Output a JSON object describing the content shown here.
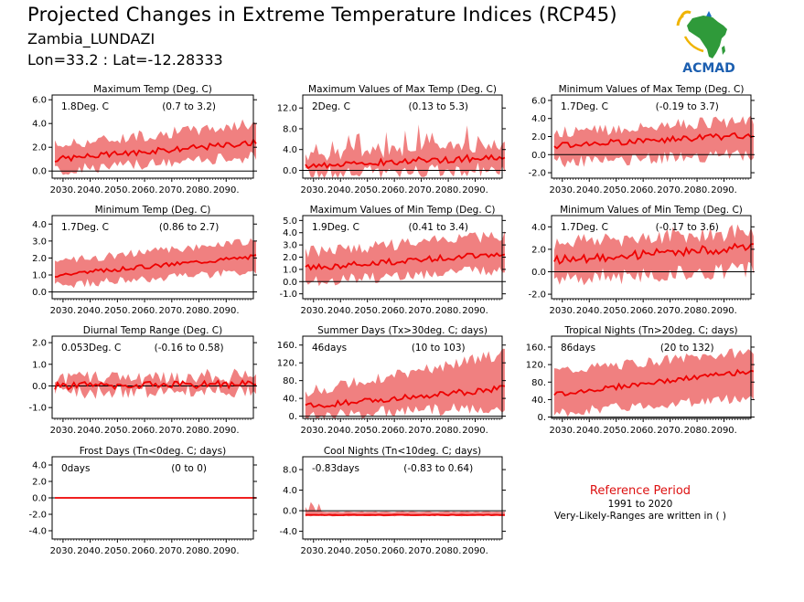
{
  "header": {
    "title": "Projected Changes in Extreme Temperature Indices (RCP45)",
    "location": "Zambia_LUNDAZI",
    "coords": "Lon=33.2 : Lat=-12.28333"
  },
  "logo": {
    "text": "ACMAD",
    "icon": "africa-map-logo",
    "colors": {
      "africa": "#2f9a3a",
      "sun": "#f0b400",
      "drop": "#1c6fc2",
      "text": "#1c5fb0"
    }
  },
  "reference": {
    "title": "Reference Period",
    "years": "1991 to 2020",
    "note": "Very-Likely-Ranges are written in ( )"
  },
  "colors": {
    "band": "#f08080",
    "line": "#ee0000",
    "zero": "#000000"
  },
  "chart_data": [
    {
      "type": "area",
      "title": "Maximum Temp (Deg. C)",
      "value_label": "1.8Deg. C",
      "range_label": "(0.7 to 3.2)",
      "ylim": [
        -0.6,
        6.4
      ],
      "yticks": [
        0,
        2,
        4,
        6
      ],
      "ytick_labels": [
        "0.0",
        "2.0",
        "4.0",
        "6.0"
      ],
      "xticks": [
        "2030.",
        "2040.",
        "2050.",
        "2060.",
        "2070.",
        "2080.",
        "2090."
      ],
      "x_range": [
        2026,
        2100
      ],
      "median_start": 1.0,
      "median_end": 2.4,
      "band_low_start": 0.0,
      "band_low_end": 1.2,
      "band_high_start": 2.2,
      "band_high_end": 4.0,
      "noise": 0.5
    },
    {
      "type": "area",
      "title": "Maximum Values of Max Temp (Deg. C)",
      "value_label": "2Deg. C",
      "range_label": "(0.13 to 5.3)",
      "ylim": [
        -1.5,
        14.5
      ],
      "yticks": [
        0,
        4,
        8,
        12
      ],
      "ytick_labels": [
        "0.0",
        "4.0",
        "8.0",
        "12.0"
      ],
      "xticks": [
        "2030.",
        "2040.",
        "2050.",
        "2060.",
        "2070.",
        "2080.",
        "2090."
      ],
      "x_range": [
        2026,
        2100
      ],
      "median_start": 0.8,
      "median_end": 2.6,
      "band_low_start": -0.5,
      "band_low_end": 0.2,
      "band_high_start": 3.0,
      "band_high_end": 5.0,
      "noise": 1.4,
      "spikes": true
    },
    {
      "type": "area",
      "title": "Minimum Values of Max Temp (Deg. C)",
      "value_label": "1.7Deg. C",
      "range_label": "(-0.19 to 3.7)",
      "ylim": [
        -2.6,
        6.6
      ],
      "yticks": [
        -2,
        0,
        2,
        4,
        6
      ],
      "ytick_labels": [
        "-2.0",
        "0.0",
        "2.0",
        "4.0",
        "6.0"
      ],
      "xticks": [
        "2030.",
        "2040.",
        "2050.",
        "2060.",
        "2070.",
        "2080.",
        "2090."
      ],
      "x_range": [
        2026,
        2100
      ],
      "median_start": 1.0,
      "median_end": 2.2,
      "band_low_start": -0.8,
      "band_low_end": 0.0,
      "band_high_start": 2.4,
      "band_high_end": 3.8,
      "noise": 0.7
    },
    {
      "type": "area",
      "title": "Minimum Temp (Deg. C)",
      "value_label": "1.7Deg. C",
      "range_label": "(0.86 to 2.7)",
      "ylim": [
        -0.4,
        4.5
      ],
      "yticks": [
        0,
        1,
        2,
        3,
        4
      ],
      "ytick_labels": [
        "0.0",
        "1.0",
        "2.0",
        "3.0",
        "4.0"
      ],
      "xticks": [
        "2030.",
        "2040.",
        "2050.",
        "2060.",
        "2070.",
        "2080.",
        "2090."
      ],
      "x_range": [
        2026,
        2100
      ],
      "median_start": 1.0,
      "median_end": 2.1,
      "band_low_start": 0.4,
      "band_low_end": 1.2,
      "band_high_start": 1.8,
      "band_high_end": 3.0,
      "noise": 0.25
    },
    {
      "type": "area",
      "title": "Maximum Values of Min Temp (Deg. C)",
      "value_label": "1.9Deg. C",
      "range_label": "(0.41 to 3.4)",
      "ylim": [
        -1.4,
        5.4
      ],
      "yticks": [
        -1,
        0,
        1,
        2,
        3,
        4,
        5
      ],
      "ytick_labels": [
        "-1.0",
        "0.0",
        "1.0",
        "2.0",
        "3.0",
        "4.0",
        "5.0"
      ],
      "xticks": [
        "2030.",
        "2040.",
        "2050.",
        "2060.",
        "2070.",
        "2080.",
        "2090."
      ],
      "x_range": [
        2026,
        2100
      ],
      "median_start": 1.1,
      "median_end": 2.3,
      "band_low_start": 0.0,
      "band_low_end": 1.0,
      "band_high_start": 2.4,
      "band_high_end": 3.8,
      "noise": 0.5
    },
    {
      "type": "area",
      "title": "Minimum Values of Min Temp (Deg. C)",
      "value_label": "1.7Deg. C",
      "range_label": "(-0.17 to 3.6)",
      "ylim": [
        -2.4,
        5.0
      ],
      "yticks": [
        -2,
        0,
        2,
        4
      ],
      "ytick_labels": [
        "-2.0",
        "0.0",
        "2.0",
        "4.0"
      ],
      "xticks": [
        "2030.",
        "2040.",
        "2050.",
        "2060.",
        "2070.",
        "2080.",
        "2090."
      ],
      "x_range": [
        2026,
        2100
      ],
      "median_start": 1.0,
      "median_end": 2.2,
      "band_low_start": -0.6,
      "band_low_end": 0.2,
      "band_high_start": 2.6,
      "band_high_end": 3.6,
      "noise": 0.8
    },
    {
      "type": "area",
      "title": "Diurnal Temp Range (Deg. C)",
      "value_label": "0.053Deg. C",
      "range_label": "(-0.16 to 0.58)",
      "ylim": [
        -1.5,
        2.3
      ],
      "yticks": [
        -1,
        0,
        1,
        2
      ],
      "ytick_labels": [
        "-1.0",
        "0.0",
        "1.0",
        "2.0"
      ],
      "xticks": [
        "2030.",
        "2040.",
        "2050.",
        "2060.",
        "2070.",
        "2080.",
        "2090."
      ],
      "x_range": [
        2026,
        2100
      ],
      "median_start": 0.0,
      "median_end": 0.1,
      "band_low_start": -0.3,
      "band_low_end": -0.2,
      "band_high_start": 0.3,
      "band_high_end": 0.5,
      "noise": 0.35
    },
    {
      "type": "area",
      "title": "Summer Days (Tx>30deg. C; days)",
      "value_label": "46days",
      "range_label": "(10 to 103)",
      "ylim": [
        -5,
        180
      ],
      "yticks": [
        0,
        40,
        80,
        120,
        160
      ],
      "ytick_labels": [
        "0.",
        "40.",
        "80.",
        "120.",
        "160."
      ],
      "xticks": [
        "2030.",
        "2040.",
        "2050.",
        "2060.",
        "2070.",
        "2080.",
        "2090."
      ],
      "x_range": [
        2026,
        2100
      ],
      "median_start": 22,
      "median_end": 62,
      "band_low_start": 2,
      "band_low_end": 20,
      "band_high_start": 55,
      "band_high_end": 140,
      "noise": 14
    },
    {
      "type": "area",
      "title": "Tropical Nights (Tn>20deg. C; days)",
      "value_label": "86days",
      "range_label": "(20 to 132)",
      "ylim": [
        -3,
        185
      ],
      "yticks": [
        0,
        40,
        80,
        120,
        160
      ],
      "ytick_labels": [
        "0.",
        "40.",
        "80.",
        "120.",
        "160."
      ],
      "xticks": [
        "2030.",
        "2040.",
        "2050.",
        "2060.",
        "2070.",
        "2080.",
        "2090."
      ],
      "x_range": [
        2026,
        2100
      ],
      "median_start": 52,
      "median_end": 106,
      "band_low_start": 10,
      "band_low_end": 45,
      "band_high_start": 105,
      "band_high_end": 150,
      "noise": 12
    },
    {
      "type": "area",
      "title": "Frost Days (Tn<0deg. C; days)",
      "value_label": "0days",
      "range_label": "(0 to 0)",
      "ylim": [
        -5,
        5
      ],
      "yticks": [
        -4,
        -2,
        0,
        2,
        4
      ],
      "ytick_labels": [
        "-4.0",
        "-2.0",
        "0.0",
        "2.0",
        "4.0"
      ],
      "xticks": [
        "2030.",
        "2040.",
        "2050.",
        "2060.",
        "2070.",
        "2080.",
        "2090."
      ],
      "x_range": [
        2026,
        2100
      ],
      "median_start": 0,
      "median_end": 0,
      "band_low_start": 0,
      "band_low_end": 0,
      "band_high_start": 0,
      "band_high_end": 0,
      "noise": 0
    },
    {
      "type": "area",
      "title": "Cool Nights (Tn<10deg. C; days)",
      "value_label": "-0.83days",
      "range_label": "(-0.83 to 0.64)",
      "ylim": [
        -5.5,
        10.5
      ],
      "yticks": [
        -4,
        0,
        4,
        8
      ],
      "ytick_labels": [
        "-4.0",
        "0.0",
        "4.0",
        "8.0"
      ],
      "xticks": [
        "2030.",
        "2040.",
        "2050.",
        "2060.",
        "2070.",
        "2080.",
        "2090."
      ],
      "x_range": [
        2026,
        2100
      ],
      "median_start": -0.83,
      "median_end": -0.83,
      "band_low_start": -1.0,
      "band_low_end": -1.0,
      "band_high_start": -0.2,
      "band_high_end": -0.2,
      "noise": 0.1,
      "early_spikes": true
    }
  ]
}
